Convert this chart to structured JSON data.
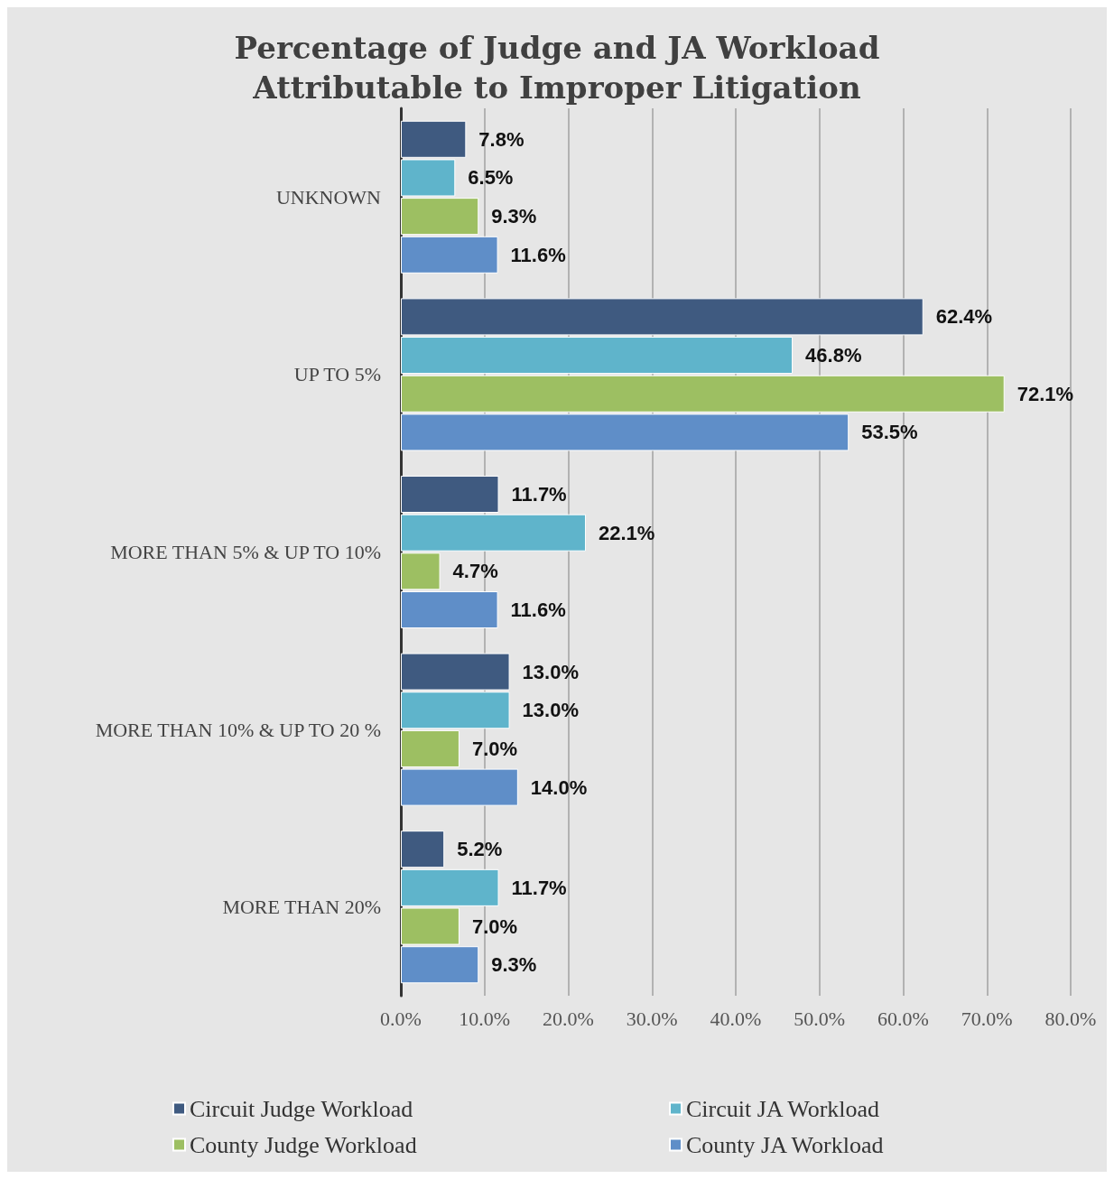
{
  "chart_data": {
    "type": "bar",
    "orientation": "horizontal",
    "title": "Percentage of Judge and JA Workload\nAttributable to Improper Litigation",
    "categories": [
      "UNKNOWN",
      "UP TO 5%",
      "MORE THAN 5% & UP TO 10%",
      "MORE THAN 10% & UP TO 20 %",
      "MORE THAN 20%"
    ],
    "series": [
      {
        "name": "Circuit Judge Workload",
        "color": "#3f5a80",
        "values": [
          7.8,
          62.4,
          11.7,
          13.0,
          5.2
        ],
        "value_labels": [
          "7.8%",
          "62.4%",
          "11.7%",
          "13.0%",
          "5.2%"
        ]
      },
      {
        "name": "Circuit JA Workload",
        "color": "#5fb4cb",
        "values": [
          6.5,
          46.8,
          22.1,
          13.0,
          11.7
        ],
        "value_labels": [
          "6.5%",
          "46.8%",
          "22.1%",
          "13.0%",
          "11.7%"
        ]
      },
      {
        "name": "County Judge Workload",
        "color": "#9dbf62",
        "values": [
          9.3,
          72.1,
          4.7,
          7.0,
          7.0
        ],
        "value_labels": [
          "9.3%",
          "72.1%",
          "4.7%",
          "7.0%",
          "7.0%"
        ]
      },
      {
        "name": "County JA Workload",
        "color": "#5f8ec8",
        "values": [
          11.6,
          53.5,
          11.6,
          14.0,
          9.3
        ],
        "value_labels": [
          "11.6%",
          "53.5%",
          "11.6%",
          "14.0%",
          "9.3%"
        ]
      }
    ],
    "xlim": [
      0,
      80
    ],
    "xticks": [
      {
        "value": 0,
        "label": "0.0%"
      },
      {
        "value": 10,
        "label": "10.0%"
      },
      {
        "value": 20,
        "label": "20.0%"
      },
      {
        "value": 30,
        "label": "30.0%"
      },
      {
        "value": 40,
        "label": "40.0%"
      },
      {
        "value": 50,
        "label": "50.0%"
      },
      {
        "value": 60,
        "label": "60.0%"
      },
      {
        "value": 70,
        "label": "70.0%"
      },
      {
        "value": 80,
        "label": "80.0%"
      }
    ],
    "grid": "x",
    "legend": "bottom"
  }
}
